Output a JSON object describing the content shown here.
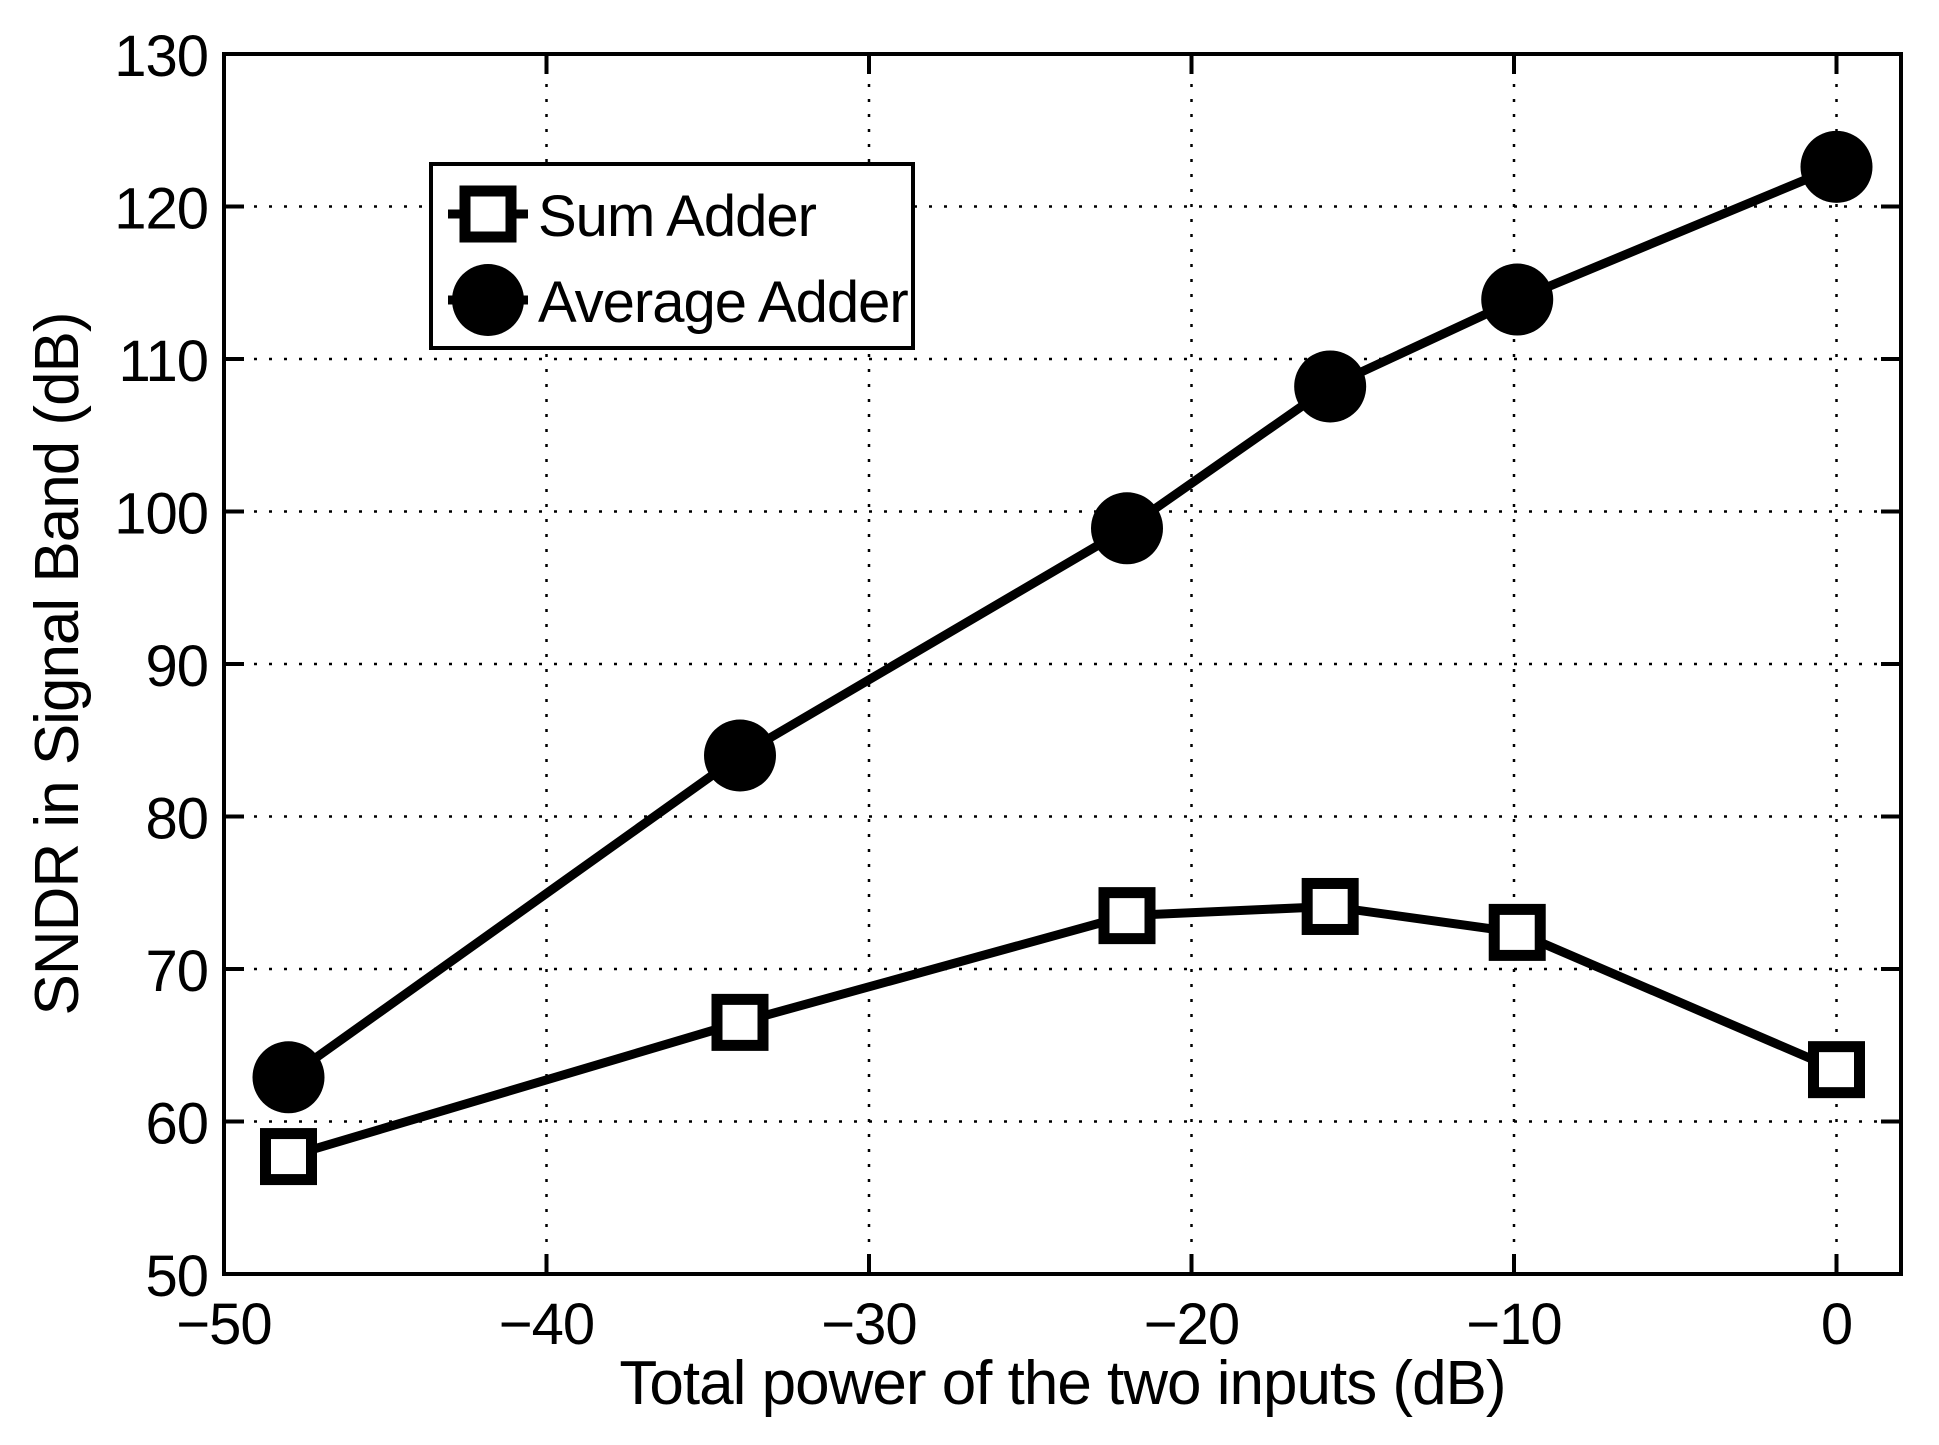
{
  "figure": {
    "background_color": "#ffffff",
    "foreground_color": "#000000"
  },
  "chart_data": {
    "type": "line",
    "title": "",
    "xlabel": "Total power of the two inputs (dB)",
    "ylabel": "SNDR in Signal Band (dB)",
    "x": [
      -48,
      -34,
      -22,
      -15.7,
      -9.9,
      0
    ],
    "series": [
      {
        "name": "Sum Adder",
        "marker": "square",
        "marker_fill": "open",
        "line_color": "#000000",
        "values": [
          57.7,
          66.5,
          73.5,
          74.1,
          72.4,
          63.4
        ]
      },
      {
        "name": "Average Adder",
        "marker": "circle",
        "marker_fill": "solid",
        "line_color": "#000000",
        "values": [
          62.9,
          84.0,
          98.9,
          108.2,
          113.9,
          122.6
        ]
      }
    ],
    "xlim": [
      -50,
      2
    ],
    "ylim": [
      50,
      130
    ],
    "x_ticks": [
      -50,
      -40,
      -30,
      -20,
      -10,
      0
    ],
    "y_ticks": [
      50,
      60,
      70,
      80,
      90,
      100,
      110,
      120,
      130
    ],
    "grid": "dotted",
    "legend_position": "upper-left-inside"
  }
}
